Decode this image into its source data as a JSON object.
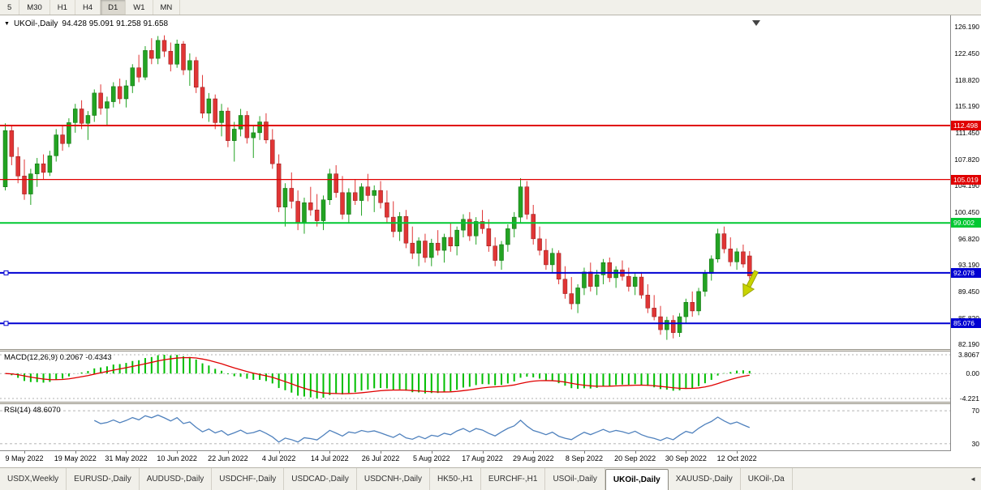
{
  "icons": {
    "symbol_dropdown": "▼",
    "tab_scroll_left": "◄"
  },
  "toolbar": {
    "timeframes": [
      {
        "label": "5",
        "active": false
      },
      {
        "label": "M30",
        "active": false
      },
      {
        "label": "H1",
        "active": false
      },
      {
        "label": "H4",
        "active": false
      },
      {
        "label": "D1",
        "active": true
      },
      {
        "label": "W1",
        "active": false
      },
      {
        "label": "MN",
        "active": false
      }
    ]
  },
  "chart": {
    "title_symbol": "UKOil-,Daily",
    "title_ohlc": "94.428 95.091 91.258 91.658",
    "up_color": "#23A323",
    "down_color": "#E03535",
    "price_axis": [
      "126.190",
      "122.450",
      "118.820",
      "115.190",
      "111.450",
      "107.820",
      "104.190",
      "100.450",
      "96.820",
      "93.190",
      "89.450",
      "85.820",
      "82.190"
    ],
    "levels": [
      {
        "label": "112.498",
        "value": 112.498,
        "color": "#E00000",
        "width": 2,
        "handles": false
      },
      {
        "label": "105.019",
        "value": 105.019,
        "color": "#E00000",
        "width": 1.2,
        "handles": false
      },
      {
        "label": "99.002",
        "value": 99.002,
        "color": "#00C832",
        "width": 2,
        "handles": false
      },
      {
        "label": "92.078",
        "value": 92.078,
        "color": "#0000D2",
        "width": 2,
        "handles": true
      },
      {
        "label": "85.076",
        "value": 85.076,
        "color": "#0000D2",
        "width": 2,
        "handles": true
      }
    ]
  },
  "macd": {
    "label": "MACD(12,26,9) 0.2067 -0.4343",
    "axis": [
      "3.8067",
      "0.00",
      "-4.221"
    ],
    "histogram_color": "#00BE00",
    "signal_color": "#E00000"
  },
  "rsi": {
    "label": "RSI(14) 48.6070",
    "levels": [
      "70",
      "30"
    ],
    "line_color": "#4F81BD"
  },
  "tabs": [
    {
      "label": "USDX,Weekly",
      "active": false
    },
    {
      "label": "EURUSD-,Daily",
      "active": false
    },
    {
      "label": "AUDUSD-,Daily",
      "active": false
    },
    {
      "label": "USDCHF-,Daily",
      "active": false
    },
    {
      "label": "USDCAD-,Daily",
      "active": false
    },
    {
      "label": "USDCNH-,Daily",
      "active": false
    },
    {
      "label": "HK50-,H1",
      "active": false
    },
    {
      "label": "EURCHF-,H1",
      "active": false
    },
    {
      "label": "USOil-,Daily",
      "active": false
    },
    {
      "label": "UKOil-,Daily",
      "active": true
    },
    {
      "label": "XAUUSD-,Daily",
      "active": false
    },
    {
      "label": "UKOil-,Da",
      "active": false
    }
  ],
  "chart_data": {
    "type": "candlestick",
    "symbol": "UKOil-",
    "timeframe": "Daily",
    "title": "UKOil-,Daily",
    "last_bar": {
      "open": 94.428,
      "high": 95.091,
      "low": 91.258,
      "close": 91.658
    },
    "ylim": [
      82.19,
      126.19
    ],
    "levels": [
      112.498,
      105.019,
      99.002,
      92.078,
      85.076
    ],
    "indicators": [
      {
        "name": "MACD",
        "params": [
          12,
          26,
          9
        ],
        "values": [
          0.2067,
          -0.4343
        ]
      },
      {
        "name": "RSI",
        "params": [
          14
        ],
        "value": 48.607
      }
    ],
    "x_ticks": [
      {
        "i": 3,
        "label": "9 May 2022"
      },
      {
        "i": 11,
        "label": "19 May 2022"
      },
      {
        "i": 19,
        "label": "31 May 2022"
      },
      {
        "i": 27,
        "label": "10 Jun 2022"
      },
      {
        "i": 35,
        "label": "22 Jun 2022"
      },
      {
        "i": 43,
        "label": "4 Jul 2022"
      },
      {
        "i": 51,
        "label": "14 Jul 2022"
      },
      {
        "i": 59,
        "label": "26 Jul 2022"
      },
      {
        "i": 67,
        "label": "5 Aug 2022"
      },
      {
        "i": 75,
        "label": "17 Aug 2022"
      },
      {
        "i": 83,
        "label": "29 Aug 2022"
      },
      {
        "i": 91,
        "label": "8 Sep 2022"
      },
      {
        "i": 99,
        "label": "20 Sep 2022"
      },
      {
        "i": 107,
        "label": "30 Sep 2022"
      },
      {
        "i": 115,
        "label": "12 Oct 2022"
      }
    ],
    "ohlc": [
      [
        104.0,
        112.8,
        103.5,
        111.8
      ],
      [
        111.8,
        112.5,
        107.0,
        108.2
      ],
      [
        108.2,
        109.5,
        104.5,
        105.5
      ],
      [
        105.5,
        107.8,
        102.2,
        103.0
      ],
      [
        103.0,
        106.5,
        101.5,
        105.8
      ],
      [
        105.8,
        108.0,
        104.0,
        107.2
      ],
      [
        107.2,
        108.5,
        105.0,
        106.0
      ],
      [
        106.0,
        109.0,
        105.5,
        108.3
      ],
      [
        108.3,
        112.0,
        107.5,
        111.2
      ],
      [
        111.2,
        112.5,
        109.0,
        110.0
      ],
      [
        110.0,
        113.5,
        109.5,
        112.9
      ],
      [
        112.9,
        115.5,
        111.5,
        114.8
      ],
      [
        114.8,
        116.0,
        112.0,
        112.8
      ],
      [
        112.8,
        114.5,
        110.5,
        113.9
      ],
      [
        113.9,
        117.5,
        113.0,
        117.0
      ],
      [
        117.0,
        118.2,
        114.0,
        114.9
      ],
      [
        114.9,
        116.5,
        112.5,
        115.8
      ],
      [
        115.8,
        118.5,
        115.0,
        117.9
      ],
      [
        117.9,
        119.0,
        115.5,
        116.2
      ],
      [
        116.2,
        118.8,
        115.0,
        118.0
      ],
      [
        118.0,
        121.0,
        117.0,
        120.5
      ],
      [
        120.5,
        122.3,
        118.5,
        119.2
      ],
      [
        119.2,
        123.5,
        118.8,
        122.9
      ],
      [
        122.9,
        124.6,
        121.0,
        121.8
      ],
      [
        121.8,
        124.9,
        121.0,
        124.3
      ],
      [
        124.3,
        125.0,
        122.0,
        122.8
      ],
      [
        122.8,
        124.0,
        120.0,
        121.0
      ],
      [
        121.0,
        124.4,
        120.5,
        123.8
      ],
      [
        123.8,
        124.2,
        119.5,
        120.2
      ],
      [
        120.2,
        122.5,
        118.0,
        121.5
      ],
      [
        121.5,
        122.0,
        117.0,
        117.8
      ],
      [
        117.8,
        119.5,
        113.5,
        114.2
      ],
      [
        114.2,
        117.0,
        113.0,
        116.2
      ],
      [
        116.2,
        116.8,
        112.0,
        112.9
      ],
      [
        112.9,
        115.5,
        111.0,
        114.5
      ],
      [
        114.5,
        115.0,
        109.5,
        110.4
      ],
      [
        110.4,
        113.0,
        107.5,
        112.0
      ],
      [
        112.0,
        114.8,
        111.0,
        113.9
      ],
      [
        113.9,
        114.5,
        110.0,
        110.8
      ],
      [
        110.8,
        112.5,
        108.0,
        111.5
      ],
      [
        111.5,
        113.8,
        110.5,
        113.0
      ],
      [
        113.0,
        114.2,
        110.0,
        110.5
      ],
      [
        110.5,
        112.0,
        106.5,
        107.2
      ],
      [
        107.2,
        108.5,
        100.5,
        101.2
      ],
      [
        101.2,
        104.5,
        98.5,
        103.8
      ],
      [
        103.8,
        106.0,
        101.0,
        102.0
      ],
      [
        102.0,
        103.5,
        98.0,
        99.0
      ],
      [
        99.0,
        102.5,
        97.5,
        101.8
      ],
      [
        101.8,
        104.0,
        100.0,
        100.8
      ],
      [
        100.8,
        103.0,
        98.5,
        99.3
      ],
      [
        99.3,
        102.8,
        98.0,
        102.2
      ],
      [
        102.2,
        106.5,
        101.5,
        105.8
      ],
      [
        105.8,
        107.0,
        102.5,
        103.2
      ],
      [
        103.2,
        105.5,
        99.5,
        100.2
      ],
      [
        100.2,
        103.8,
        99.0,
        103.2
      ],
      [
        103.2,
        105.0,
        101.5,
        102.1
      ],
      [
        102.1,
        104.5,
        100.0,
        104.0
      ],
      [
        104.0,
        105.8,
        102.0,
        102.8
      ],
      [
        102.8,
        104.2,
        100.5,
        103.5
      ],
      [
        103.5,
        104.8,
        101.0,
        101.8
      ],
      [
        101.8,
        103.5,
        99.0,
        99.8
      ],
      [
        99.8,
        102.0,
        97.0,
        97.8
      ],
      [
        97.8,
        100.5,
        96.5,
        99.9
      ],
      [
        99.9,
        100.8,
        95.5,
        96.2
      ],
      [
        96.2,
        98.5,
        94.0,
        94.8
      ],
      [
        94.8,
        97.0,
        93.0,
        96.5
      ],
      [
        96.5,
        97.5,
        93.5,
        94.2
      ],
      [
        94.2,
        96.8,
        93.0,
        96.2
      ],
      [
        96.2,
        98.0,
        94.5,
        95.2
      ],
      [
        95.2,
        97.5,
        93.5,
        97.0
      ],
      [
        97.0,
        99.0,
        95.0,
        95.8
      ],
      [
        95.8,
        98.5,
        94.5,
        98.0
      ],
      [
        98.0,
        100.2,
        97.0,
        99.5
      ],
      [
        99.5,
        100.5,
        96.5,
        97.2
      ],
      [
        97.2,
        99.8,
        96.0,
        99.2
      ],
      [
        99.2,
        100.8,
        97.5,
        98.2
      ],
      [
        98.2,
        99.5,
        95.0,
        95.8
      ],
      [
        95.8,
        97.0,
        93.0,
        93.8
      ],
      [
        93.8,
        96.5,
        92.5,
        96.0
      ],
      [
        96.0,
        98.8,
        95.0,
        98.2
      ],
      [
        98.2,
        100.5,
        97.0,
        99.8
      ],
      [
        99.8,
        105.2,
        99.0,
        104.0
      ],
      [
        104.0,
        104.8,
        99.5,
        100.2
      ],
      [
        100.2,
        101.5,
        96.0,
        96.8
      ],
      [
        96.8,
        98.5,
        94.5,
        95.2
      ],
      [
        95.2,
        96.8,
        92.5,
        93.2
      ],
      [
        93.2,
        95.5,
        92.0,
        94.8
      ],
      [
        94.8,
        95.2,
        90.5,
        91.2
      ],
      [
        91.2,
        93.0,
        88.5,
        89.2
      ],
      [
        89.2,
        91.5,
        87.0,
        87.8
      ],
      [
        87.8,
        90.5,
        86.5,
        90.0
      ],
      [
        90.0,
        92.8,
        89.0,
        92.2
      ],
      [
        92.2,
        93.5,
        89.5,
        90.2
      ],
      [
        90.2,
        92.5,
        89.0,
        91.8
      ],
      [
        91.8,
        94.0,
        90.5,
        93.5
      ],
      [
        93.5,
        94.2,
        90.8,
        91.4
      ],
      [
        91.4,
        93.0,
        90.0,
        92.5
      ],
      [
        92.5,
        93.8,
        91.0,
        91.6
      ],
      [
        91.6,
        92.8,
        89.5,
        90.2
      ],
      [
        90.2,
        92.0,
        89.0,
        91.5
      ],
      [
        91.5,
        92.2,
        88.5,
        89.0
      ],
      [
        89.0,
        90.5,
        86.5,
        87.2
      ],
      [
        87.2,
        89.0,
        85.5,
        86.0
      ],
      [
        86.0,
        87.5,
        83.5,
        84.2
      ],
      [
        84.2,
        86.0,
        82.8,
        85.5
      ],
      [
        85.5,
        86.2,
        83.0,
        83.8
      ],
      [
        83.8,
        86.5,
        83.2,
        86.0
      ],
      [
        86.0,
        88.5,
        85.0,
        88.0
      ],
      [
        88.0,
        89.5,
        86.0,
        86.8
      ],
      [
        86.8,
        90.0,
        86.2,
        89.5
      ],
      [
        89.5,
        92.5,
        88.8,
        92.0
      ],
      [
        92.0,
        94.5,
        91.0,
        94.0
      ],
      [
        94.0,
        98.2,
        93.5,
        97.5
      ],
      [
        97.5,
        98.5,
        94.8,
        95.4
      ],
      [
        95.4,
        97.0,
        93.0,
        93.6
      ],
      [
        93.6,
        95.5,
        92.5,
        95.0
      ],
      [
        95.0,
        96.0,
        92.8,
        93.3
      ],
      [
        94.428,
        95.091,
        91.258,
        91.658
      ]
    ]
  }
}
